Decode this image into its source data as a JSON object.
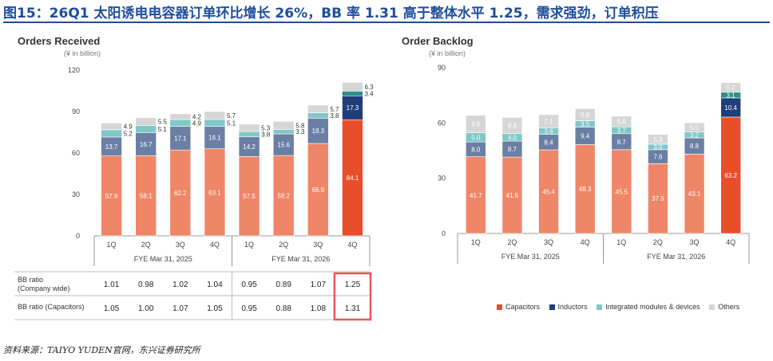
{
  "page_title": "图15：26Q1 太阳诱电电容器订单环比增长 26%，BB 率 1.31 高于整体水平 1.25，需求强劲，订单积压",
  "source": "资料来源：TAIYO YUDEN官网，东兴证券研究所",
  "colors": {
    "capacitors": "#ef8668",
    "inductors": "#6b7fa5",
    "modules": "#7fc8c8",
    "others": "#d6d6d6",
    "capacitors_hl": "#e94e2b",
    "inductors_hl": "#1f3f7a",
    "modules_hl": "#2e8f88",
    "highlight_box": "#e8555f"
  },
  "legend": [
    {
      "key": "capacitors",
      "label": "Capacitors"
    },
    {
      "key": "inductors",
      "label": "Inductors"
    },
    {
      "key": "modules",
      "label": "Integrated modules & devices"
    },
    {
      "key": "others",
      "label": "Others"
    }
  ],
  "bb_table": {
    "rows": [
      {
        "label_lines": [
          "BB ratio",
          "(Company wide)"
        ],
        "values": [
          "1.01",
          "0.98",
          "1.02",
          "1.04",
          "0.95",
          "0.89",
          "1.07",
          "1.25"
        ]
      },
      {
        "label_lines": [
          "BB ratio (Capacitors)"
        ],
        "values": [
          "1.05",
          "1.00",
          "1.07",
          "1.05",
          "0.95",
          "0.88",
          "1.08",
          "1.31"
        ]
      }
    ],
    "highlight_column": 7
  },
  "chart_data": [
    {
      "type": "bar",
      "stacked": true,
      "title": "Orders Received",
      "unit": "(¥ in billion)",
      "categories": [
        "1Q",
        "2Q",
        "3Q",
        "4Q",
        "1Q",
        "2Q",
        "3Q",
        "4Q"
      ],
      "groups": [
        {
          "label": "FYE Mar 31, 2025",
          "categories": [
            0,
            1,
            2,
            3
          ]
        },
        {
          "label": "FYE Mar 31, 2026",
          "categories": [
            4,
            5,
            6,
            7
          ]
        }
      ],
      "ylim": [
        0,
        120
      ],
      "yticks": [
        "0",
        "30",
        "60",
        "90",
        "120"
      ],
      "highlight_index": 7,
      "series": [
        {
          "key": "capacitors",
          "values": [
            57.9,
            58.1,
            62.2,
            63.1,
            57.5,
            58.2,
            66.9,
            84.1
          ],
          "labels": [
            "57.9",
            "58.1",
            "62.2",
            "63.1",
            "57.5",
            "58.2",
            "66.9",
            "84.1"
          ]
        },
        {
          "key": "inductors",
          "values": [
            13.7,
            16.7,
            17.1,
            16.1,
            14.2,
            15.6,
            18.3,
            17.3
          ],
          "labels": [
            "13.7",
            "16.7",
            "17.1",
            "16.1",
            "14.2",
            "15.6",
            "18.3",
            "17.3"
          ]
        },
        {
          "key": "modules",
          "values": [
            5.2,
            5.1,
            4.9,
            5.1,
            3.8,
            3.3,
            3.8,
            3.4
          ],
          "labels": [
            "5.2",
            "5.1",
            "4.9",
            "5.1",
            "3.8",
            "3.3",
            "3.8",
            "3.4"
          ]
        },
        {
          "key": "others",
          "values": [
            4.9,
            5.5,
            4.2,
            5.7,
            5.3,
            5.8,
            5.7,
            6.3
          ],
          "labels": [
            "4.9",
            "5.5",
            "4.2",
            "5.7",
            "5.3",
            "5.8",
            "5.7",
            "6.3"
          ]
        }
      ]
    },
    {
      "type": "bar",
      "stacked": true,
      "title": "Order Backlog",
      "unit": "(¥ in billion)",
      "categories": [
        "1Q",
        "2Q",
        "3Q",
        "4Q",
        "1Q",
        "2Q",
        "3Q",
        "4Q"
      ],
      "groups": [
        {
          "label": "FYE Mar 31, 2025",
          "categories": [
            0,
            1,
            2,
            3
          ]
        },
        {
          "label": "FYE Mar 31, 2026",
          "categories": [
            4,
            5,
            6,
            7
          ]
        }
      ],
      "ylim": [
        0,
        90
      ],
      "yticks": [
        "0",
        "30",
        "60",
        "90"
      ],
      "highlight_index": 7,
      "series": [
        {
          "key": "capacitors",
          "values": [
            41.7,
            41.5,
            45.4,
            48.3,
            45.5,
            37.9,
            43.1,
            63.2
          ],
          "labels": [
            "41.7",
            "41.5",
            "45.4",
            "48.3",
            "45.5",
            "37.9",
            "43.1",
            "63.2"
          ]
        },
        {
          "key": "inductors",
          "values": [
            8.0,
            8.7,
            8.4,
            9.4,
            8.7,
            7.6,
            8.8,
            10.4
          ],
          "labels": [
            "8.0",
            "8.7",
            "8.4",
            "9.4",
            "8.7",
            "7.6",
            "8.8",
            "10.4"
          ]
        },
        {
          "key": "modules",
          "values": [
            5.0,
            4.0,
            3.6,
            3.5,
            3.7,
            3.0,
            3.2,
            3.1
          ],
          "labels": [
            "5.0",
            "4.0",
            "3.6",
            "3.5",
            "3.7",
            "3.0",
            "3.2",
            "3.1"
          ]
        },
        {
          "key": "others",
          "values": [
            9.5,
            8.8,
            7.1,
            6.6,
            5.8,
            5.3,
            5.0,
            5.2
          ],
          "labels": [
            "9.5",
            "8.8",
            "7.1",
            "6.6",
            "5.8",
            "5.3",
            "5.0",
            "5.2"
          ]
        }
      ]
    }
  ]
}
